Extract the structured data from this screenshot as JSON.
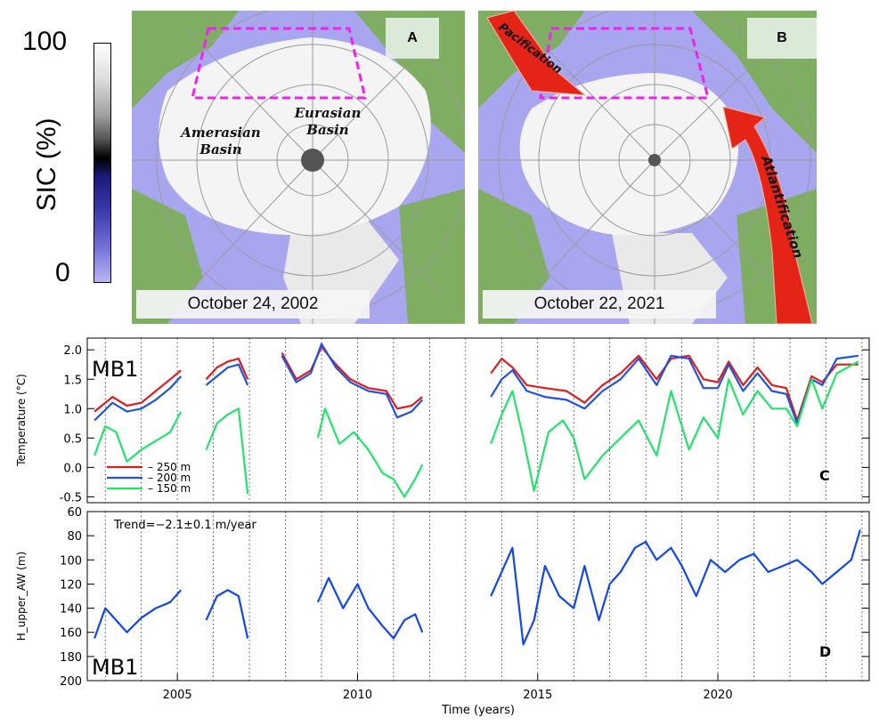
{
  "colorbar": {
    "label": "SIC (%)",
    "max_label": "100",
    "min_label": "0",
    "max_value": 100,
    "min_value": 0
  },
  "map_a": {
    "letter": "A",
    "date": "October 24, 2002",
    "amerasian": "Amerasian",
    "amerasian2": "Basin",
    "eurasian": "Eurasian",
    "eurasian2": "Basin"
  },
  "map_b": {
    "letter": "B",
    "date": "October 22, 2021",
    "pacification": "Pacification",
    "atlantification": "Atlantification"
  },
  "colors": {
    "ocean": "#a9a6f0",
    "ice": "#f4f4f4",
    "land": "#7fae63",
    "box": "#ee22ee",
    "arrow": "#e32416",
    "t250": "#e01b1b",
    "t200": "#1f52e0",
    "t150": "#22e36a",
    "depth": "#1246f0"
  },
  "chart_data": [
    {
      "type": "line",
      "panel": "C",
      "station": "MB1",
      "ylabel": "Temperature (°C)",
      "xlim": [
        2002.5,
        2024.2
      ],
      "ylim": [
        -0.6,
        2.2
      ],
      "yticks": [
        2.0,
        1.5,
        1.0,
        0.5,
        0.0,
        -0.5
      ],
      "ytick_labels": [
        "2.0",
        "1.5",
        "1.0",
        "0.5",
        "0.0",
        "-0.5"
      ],
      "series": [
        {
          "name": "–  250 m",
          "color": "#e01b1b",
          "segments": [
            [
              [
                2002.7,
                0.95
              ],
              [
                2003.2,
                1.2
              ],
              [
                2003.6,
                1.05
              ],
              [
                2004.0,
                1.1
              ],
              [
                2004.4,
                1.3
              ],
              [
                2004.8,
                1.5
              ],
              [
                2005.1,
                1.65
              ]
            ],
            [
              [
                2005.8,
                1.5
              ],
              [
                2006.1,
                1.7
              ],
              [
                2006.4,
                1.8
              ],
              [
                2006.7,
                1.85
              ],
              [
                2006.95,
                1.5
              ]
            ],
            [
              [
                2007.9,
                1.95
              ],
              [
                2008.3,
                1.5
              ],
              [
                2008.7,
                1.65
              ],
              [
                2009.0,
                2.05
              ],
              [
                2009.4,
                1.75
              ],
              [
                2009.8,
                1.5
              ],
              [
                2010.3,
                1.35
              ],
              [
                2010.8,
                1.3
              ],
              [
                2011.1,
                1.0
              ],
              [
                2011.5,
                1.05
              ],
              [
                2011.8,
                1.2
              ]
            ],
            [
              [
                2013.7,
                1.6
              ],
              [
                2014.0,
                1.85
              ],
              [
                2014.3,
                1.7
              ],
              [
                2014.7,
                1.4
              ],
              [
                2015.2,
                1.35
              ],
              [
                2015.8,
                1.3
              ],
              [
                2016.3,
                1.1
              ],
              [
                2016.8,
                1.4
              ],
              [
                2017.3,
                1.6
              ],
              [
                2017.8,
                1.9
              ],
              [
                2018.3,
                1.5
              ],
              [
                2018.7,
                1.85
              ],
              [
                2019.2,
                1.9
              ],
              [
                2019.6,
                1.5
              ],
              [
                2020.0,
                1.45
              ],
              [
                2020.3,
                1.8
              ],
              [
                2020.7,
                1.4
              ],
              [
                2021.1,
                1.7
              ],
              [
                2021.5,
                1.4
              ],
              [
                2021.9,
                1.35
              ],
              [
                2022.2,
                0.8
              ],
              [
                2022.6,
                1.55
              ],
              [
                2022.9,
                1.45
              ],
              [
                2023.3,
                1.75
              ],
              [
                2023.9,
                1.75
              ]
            ]
          ]
        },
        {
          "name": "–  200 m",
          "color": "#1f52e0",
          "segments": [
            [
              [
                2002.7,
                0.8
              ],
              [
                2003.2,
                1.1
              ],
              [
                2003.6,
                0.95
              ],
              [
                2004.0,
                1.0
              ],
              [
                2004.4,
                1.15
              ],
              [
                2004.8,
                1.35
              ],
              [
                2005.1,
                1.55
              ]
            ],
            [
              [
                2005.8,
                1.4
              ],
              [
                2006.1,
                1.55
              ],
              [
                2006.4,
                1.7
              ],
              [
                2006.7,
                1.75
              ],
              [
                2006.95,
                1.4
              ]
            ],
            [
              [
                2007.9,
                1.9
              ],
              [
                2008.3,
                1.45
              ],
              [
                2008.7,
                1.6
              ],
              [
                2009.0,
                2.1
              ],
              [
                2009.4,
                1.7
              ],
              [
                2009.8,
                1.45
              ],
              [
                2010.3,
                1.3
              ],
              [
                2010.8,
                1.25
              ],
              [
                2011.1,
                0.85
              ],
              [
                2011.5,
                0.95
              ],
              [
                2011.8,
                1.15
              ]
            ],
            [
              [
                2013.7,
                1.2
              ],
              [
                2014.0,
                1.5
              ],
              [
                2014.3,
                1.65
              ],
              [
                2014.7,
                1.3
              ],
              [
                2015.2,
                1.2
              ],
              [
                2015.8,
                1.15
              ],
              [
                2016.3,
                1.0
              ],
              [
                2016.8,
                1.3
              ],
              [
                2017.3,
                1.5
              ],
              [
                2017.8,
                1.85
              ],
              [
                2018.3,
                1.4
              ],
              [
                2018.7,
                1.9
              ],
              [
                2019.2,
                1.85
              ],
              [
                2019.6,
                1.35
              ],
              [
                2020.0,
                1.35
              ],
              [
                2020.3,
                1.75
              ],
              [
                2020.7,
                1.3
              ],
              [
                2021.1,
                1.6
              ],
              [
                2021.5,
                1.3
              ],
              [
                2021.9,
                1.25
              ],
              [
                2022.2,
                0.75
              ],
              [
                2022.6,
                1.5
              ],
              [
                2022.9,
                1.4
              ],
              [
                2023.3,
                1.85
              ],
              [
                2023.9,
                1.9
              ]
            ]
          ]
        },
        {
          "name": "–  150 m",
          "color": "#22e36a",
          "segments": [
            [
              [
                2002.7,
                0.2
              ],
              [
                2003.0,
                0.7
              ],
              [
                2003.3,
                0.6
              ],
              [
                2003.6,
                0.1
              ],
              [
                2004.0,
                0.3
              ],
              [
                2004.4,
                0.45
              ],
              [
                2004.8,
                0.6
              ],
              [
                2005.1,
                0.95
              ]
            ],
            [
              [
                2005.8,
                0.3
              ],
              [
                2006.1,
                0.75
              ],
              [
                2006.4,
                0.9
              ],
              [
                2006.7,
                1.0
              ],
              [
                2006.95,
                -0.45
              ]
            ],
            [
              [
                2008.9,
                0.5
              ],
              [
                2009.1,
                1.0
              ],
              [
                2009.5,
                0.4
              ],
              [
                2009.9,
                0.6
              ],
              [
                2010.3,
                0.3
              ],
              [
                2010.7,
                -0.1
              ],
              [
                2011.0,
                -0.2
              ],
              [
                2011.3,
                -0.5
              ],
              [
                2011.6,
                -0.2
              ],
              [
                2011.8,
                0.05
              ]
            ],
            [
              [
                2013.7,
                0.4
              ],
              [
                2014.0,
                0.9
              ],
              [
                2014.3,
                1.3
              ],
              [
                2014.6,
                0.5
              ],
              [
                2014.9,
                -0.4
              ],
              [
                2015.3,
                0.6
              ],
              [
                2015.7,
                0.8
              ],
              [
                2016.0,
                0.5
              ],
              [
                2016.3,
                -0.2
              ],
              [
                2016.8,
                0.2
              ],
              [
                2017.3,
                0.5
              ],
              [
                2017.8,
                0.8
              ],
              [
                2018.3,
                0.2
              ],
              [
                2018.7,
                1.3
              ],
              [
                2019.2,
                0.3
              ],
              [
                2019.6,
                0.85
              ],
              [
                2020.0,
                0.5
              ],
              [
                2020.3,
                1.5
              ],
              [
                2020.7,
                0.9
              ],
              [
                2021.1,
                1.3
              ],
              [
                2021.5,
                1.0
              ],
              [
                2021.9,
                1.0
              ],
              [
                2022.2,
                0.7
              ],
              [
                2022.6,
                1.5
              ],
              [
                2022.9,
                1.0
              ],
              [
                2023.3,
                1.6
              ],
              [
                2023.9,
                1.8
              ]
            ]
          ]
        }
      ]
    },
    {
      "type": "line",
      "panel": "D",
      "station": "MB1",
      "ylabel": "H_upper_AW (m)",
      "xlabel": "Time (years)",
      "annotation": "Trend=−2.1±0.1 m/year",
      "xlim": [
        2002.5,
        2024.2
      ],
      "ylim": [
        200,
        60
      ],
      "yticks": [
        60,
        80,
        100,
        120,
        140,
        160,
        180,
        200
      ],
      "ytick_labels": [
        "60",
        "80",
        "100",
        "120",
        "140",
        "160",
        "180",
        "200"
      ],
      "xticks": [
        2005,
        2010,
        2015,
        2020
      ],
      "xtick_labels": [
        "2005",
        "2010",
        "2015",
        "2020"
      ],
      "series": [
        {
          "name": "H_upper_AW",
          "color": "#1246f0",
          "segments": [
            [
              [
                2002.7,
                165
              ],
              [
                2003.0,
                140
              ],
              [
                2003.3,
                150
              ],
              [
                2003.6,
                160
              ],
              [
                2004.0,
                148
              ],
              [
                2004.4,
                140
              ],
              [
                2004.8,
                135
              ],
              [
                2005.1,
                125
              ]
            ],
            [
              [
                2005.8,
                150
              ],
              [
                2006.1,
                130
              ],
              [
                2006.4,
                125
              ],
              [
                2006.7,
                130
              ],
              [
                2006.95,
                165
              ]
            ],
            [
              [
                2008.9,
                135
              ],
              [
                2009.2,
                115
              ],
              [
                2009.6,
                140
              ],
              [
                2010.0,
                120
              ],
              [
                2010.3,
                140
              ],
              [
                2010.7,
                155
              ],
              [
                2011.0,
                165
              ],
              [
                2011.3,
                150
              ],
              [
                2011.6,
                145
              ],
              [
                2011.8,
                160
              ]
            ],
            [
              [
                2013.7,
                130
              ],
              [
                2014.0,
                110
              ],
              [
                2014.3,
                90
              ],
              [
                2014.6,
                170
              ],
              [
                2014.9,
                150
              ],
              [
                2015.2,
                105
              ],
              [
                2015.6,
                130
              ],
              [
                2016.0,
                140
              ],
              [
                2016.3,
                105
              ],
              [
                2016.7,
                150
              ],
              [
                2017.0,
                120
              ],
              [
                2017.3,
                110
              ],
              [
                2017.7,
                90
              ],
              [
                2018.0,
                85
              ],
              [
                2018.3,
                100
              ],
              [
                2018.7,
                90
              ],
              [
                2019.0,
                105
              ],
              [
                2019.4,
                130
              ],
              [
                2019.8,
                100
              ],
              [
                2020.2,
                110
              ],
              [
                2020.6,
                100
              ],
              [
                2021.0,
                95
              ],
              [
                2021.4,
                110
              ],
              [
                2021.8,
                105
              ],
              [
                2022.2,
                100
              ],
              [
                2022.6,
                110
              ],
              [
                2022.9,
                120
              ],
              [
                2023.3,
                110
              ],
              [
                2023.7,
                100
              ],
              [
                2023.95,
                75
              ]
            ]
          ]
        }
      ]
    }
  ]
}
